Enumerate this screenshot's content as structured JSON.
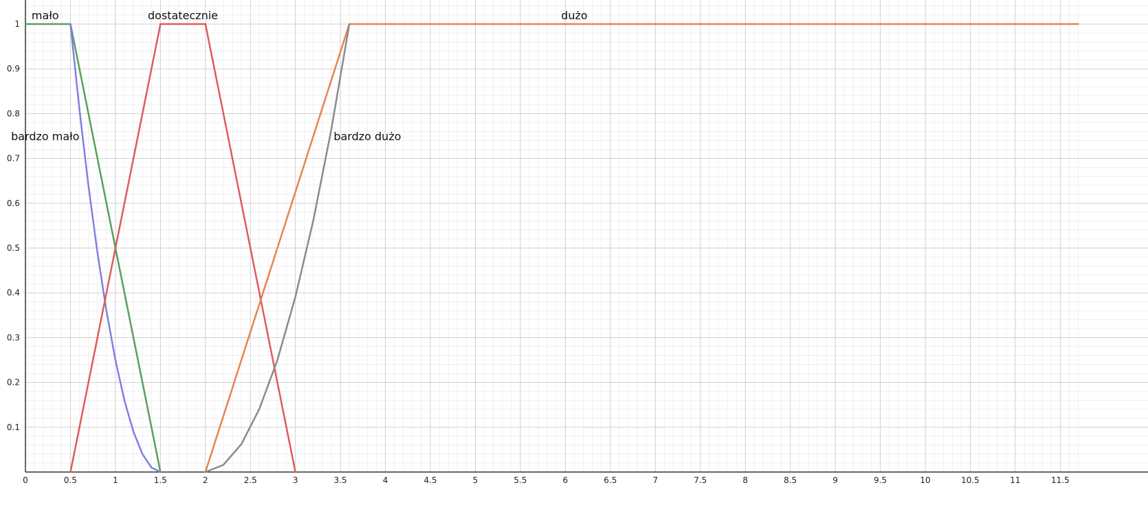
{
  "chart_data": {
    "type": "line",
    "title": "",
    "xlabel": "",
    "ylabel": "",
    "xlim": [
      0,
      11.7
    ],
    "ylim": [
      0,
      1
    ],
    "x_ticks": [
      0,
      0.5,
      1,
      1.5,
      2,
      2.5,
      3,
      3.5,
      4,
      4.5,
      5,
      5.5,
      6,
      6.5,
      7,
      7.5,
      8,
      8.5,
      9,
      9.5,
      10,
      10.5,
      11,
      11.5
    ],
    "x_tick_labels": [
      "0",
      "0.5",
      "1",
      "1.5",
      "2",
      "2.5",
      "3",
      "3.5",
      "4",
      "4.5",
      "5",
      "5.5",
      "6",
      "6.5",
      "7",
      "7.5",
      "8",
      "8.5",
      "9",
      "9.5",
      "10",
      "10.5",
      "11",
      "11.5"
    ],
    "y_ticks": [
      0.1,
      0.2,
      0.3,
      0.4,
      0.5,
      0.6,
      0.7,
      0.8,
      0.9,
      1
    ],
    "y_tick_labels": [
      "0.1",
      "0.2",
      "0.3",
      "0.4",
      "0.5",
      "0.6",
      "0.7",
      "0.8",
      "0.9",
      "1"
    ],
    "grid": true,
    "legend": "none",
    "series": [
      {
        "name": "mało",
        "color": "#5a9e5a",
        "x": [
          0,
          0.5,
          1.5
        ],
        "y": [
          1,
          1,
          0
        ]
      },
      {
        "name": "bardzo mało",
        "color": "#7f7fe3",
        "x": [
          0.5,
          0.6,
          0.7,
          0.8,
          0.9,
          1.0,
          1.1,
          1.2,
          1.3,
          1.4,
          1.5
        ],
        "y": [
          1,
          0.81,
          0.64,
          0.49,
          0.36,
          0.25,
          0.16,
          0.09,
          0.04,
          0.01,
          0
        ]
      },
      {
        "name": "dostatecznie",
        "color": "#e05a5a",
        "x": [
          0.5,
          1.5,
          2,
          3
        ],
        "y": [
          0,
          1,
          1,
          0
        ]
      },
      {
        "name": "dużo",
        "color": "#e6844a",
        "x": [
          2,
          3.6,
          11.7
        ],
        "y": [
          0,
          1,
          1
        ]
      },
      {
        "name": "bardzo dużo",
        "color": "#8a8a8a",
        "x": [
          2,
          2.2,
          2.4,
          2.6,
          2.8,
          3.0,
          3.2,
          3.4,
          3.6
        ],
        "y": [
          0,
          0.016,
          0.0625,
          0.141,
          0.25,
          0.391,
          0.5625,
          0.766,
          1
        ]
      }
    ],
    "annotations": [
      {
        "text": "mało",
        "x": 0.22,
        "y": 1.02
      },
      {
        "text": "dostatecznie",
        "x": 1.75,
        "y": 1.02
      },
      {
        "text": "dużo",
        "x": 6.1,
        "y": 1.02
      },
      {
        "text": "bardzo mało",
        "x": 0.22,
        "y": 0.75
      },
      {
        "text": "bardzo dużo",
        "x": 3.8,
        "y": 0.75
      }
    ]
  }
}
